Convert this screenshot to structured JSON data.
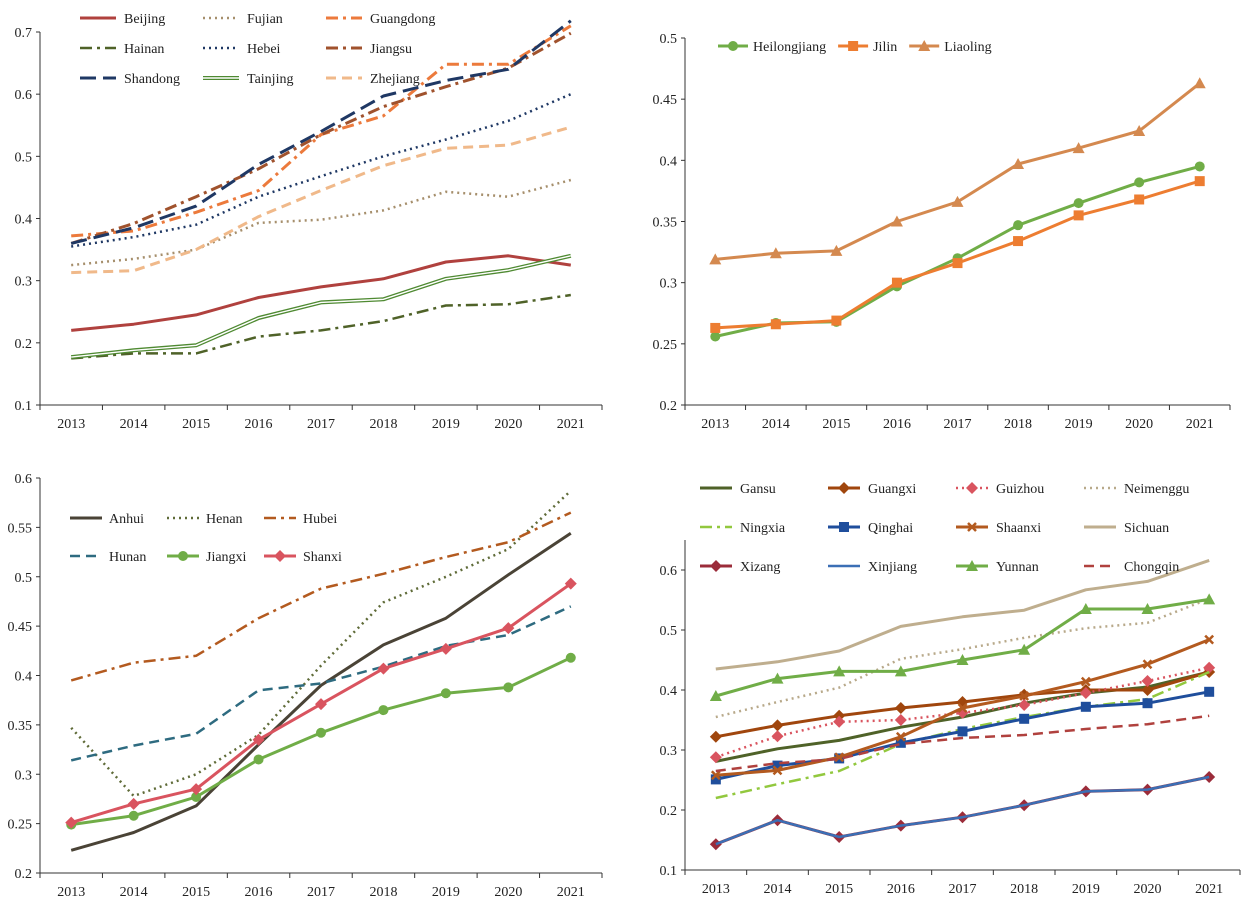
{
  "chart_data": [
    {
      "type": "line",
      "x": [
        "2013",
        "2014",
        "2015",
        "2016",
        "2017",
        "2018",
        "2019",
        "2020",
        "2021"
      ],
      "ylim": [
        0.1,
        0.7
      ],
      "yticks": [
        "0.1",
        "0.2",
        "0.3",
        "0.4",
        "0.5",
        "0.6",
        "0.7"
      ],
      "legend_placement": "top",
      "series": [
        {
          "name": "Beijing",
          "color": "#b0413e",
          "dash": "solid",
          "width": 3,
          "marker": "none",
          "values": [
            0.22,
            0.23,
            0.245,
            0.273,
            0.29,
            0.303,
            0.33,
            0.34,
            0.325
          ]
        },
        {
          "name": "Fujian",
          "color": "#a68f6c",
          "dash": "dot",
          "width": 2.5,
          "marker": "none",
          "values": [
            0.325,
            0.335,
            0.35,
            0.393,
            0.398,
            0.413,
            0.443,
            0.435,
            0.462
          ]
        },
        {
          "name": "Guangdong",
          "color": "#ec7a3c",
          "dash": "dashdot",
          "width": 3,
          "marker": "none",
          "values": [
            0.372,
            0.38,
            0.41,
            0.445,
            0.535,
            0.565,
            0.648,
            0.648,
            0.71
          ]
        },
        {
          "name": "Hainan",
          "color": "#4f6228",
          "dash": "dashdot",
          "width": 2.5,
          "marker": "none",
          "values": [
            0.175,
            0.183,
            0.183,
            0.21,
            0.22,
            0.235,
            0.26,
            0.262,
            0.277
          ]
        },
        {
          "name": "Hebei",
          "color": "#1f3864",
          "dash": "dot",
          "width": 2.5,
          "marker": "none",
          "values": [
            0.355,
            0.37,
            0.39,
            0.435,
            0.468,
            0.5,
            0.527,
            0.557,
            0.6
          ]
        },
        {
          "name": "Jiangsu",
          "color": "#a0522d",
          "dash": "dashdot",
          "width": 3,
          "marker": "none",
          "values": [
            0.36,
            0.392,
            0.435,
            0.48,
            0.535,
            0.58,
            0.612,
            0.642,
            0.698
          ]
        },
        {
          "name": "Shandong",
          "color": "#1f3864",
          "dash": "longdash",
          "width": 3,
          "marker": "none",
          "values": [
            0.36,
            0.385,
            0.42,
            0.487,
            0.54,
            0.597,
            0.622,
            0.64,
            0.718
          ]
        },
        {
          "name": "Tainjing",
          "color": "#4f8a32",
          "dash": "double",
          "width": 4,
          "marker": "none",
          "values": [
            0.177,
            0.188,
            0.196,
            0.24,
            0.265,
            0.27,
            0.303,
            0.317,
            0.34
          ]
        },
        {
          "name": "Zhejiang",
          "color": "#f0b98a",
          "dash": "dash",
          "width": 3,
          "marker": "none",
          "values": [
            0.313,
            0.316,
            0.35,
            0.403,
            0.445,
            0.485,
            0.513,
            0.518,
            0.547
          ]
        }
      ]
    },
    {
      "type": "line",
      "x": [
        "2013",
        "2014",
        "2015",
        "2016",
        "2017",
        "2018",
        "2019",
        "2020",
        "2021"
      ],
      "ylim": [
        0.2,
        0.5
      ],
      "yticks": [
        "0.2",
        "0.25",
        "0.3",
        "0.35",
        "0.4",
        "0.45",
        "0.5"
      ],
      "legend_placement": "top",
      "series": [
        {
          "name": "Heilongjiang",
          "color": "#70ad47",
          "dash": "solid",
          "width": 3,
          "marker": "circle",
          "values": [
            0.256,
            0.267,
            0.268,
            0.297,
            0.32,
            0.347,
            0.365,
            0.382,
            0.395
          ]
        },
        {
          "name": "Jilin",
          "color": "#ed7d31",
          "dash": "solid",
          "width": 3,
          "marker": "square",
          "values": [
            0.263,
            0.266,
            0.269,
            0.3,
            0.316,
            0.334,
            0.355,
            0.368,
            0.383
          ]
        },
        {
          "name": "Liaoling",
          "color": "#d4894f",
          "dash": "solid",
          "width": 3,
          "marker": "triangle",
          "values": [
            0.319,
            0.324,
            0.326,
            0.35,
            0.366,
            0.397,
            0.41,
            0.424,
            0.463
          ]
        }
      ]
    },
    {
      "type": "line",
      "x": [
        "2013",
        "2014",
        "2015",
        "2016",
        "2017",
        "2018",
        "2019",
        "2020",
        "2021"
      ],
      "ylim": [
        0.2,
        0.6
      ],
      "yticks": [
        "0.2",
        "0.25",
        "0.3",
        "0.35",
        "0.4",
        "0.45",
        "0.5",
        "0.55",
        "0.6"
      ],
      "legend_placement": "top-left",
      "series": [
        {
          "name": "Anhui",
          "color": "#4a4336",
          "dash": "solid",
          "width": 3,
          "marker": "none",
          "values": [
            0.223,
            0.241,
            0.268,
            0.33,
            0.39,
            0.431,
            0.458,
            0.502,
            0.544
          ]
        },
        {
          "name": "Henan",
          "color": "#5f6b38",
          "dash": "dot",
          "width": 2.5,
          "marker": "none",
          "values": [
            0.347,
            0.278,
            0.3,
            0.34,
            0.41,
            0.474,
            0.5,
            0.528,
            0.587
          ]
        },
        {
          "name": "Hubei",
          "color": "#b35a1f",
          "dash": "dashdot",
          "width": 2.5,
          "marker": "none",
          "values": [
            0.395,
            0.413,
            0.42,
            0.458,
            0.488,
            0.503,
            0.52,
            0.535,
            0.565
          ]
        },
        {
          "name": "Hunan",
          "color": "#2e6b80",
          "dash": "dash",
          "width": 2.5,
          "marker": "none",
          "values": [
            0.314,
            0.329,
            0.341,
            0.385,
            0.392,
            0.409,
            0.43,
            0.441,
            0.47
          ]
        },
        {
          "name": "Jiangxi",
          "color": "#70ad47",
          "dash": "solid",
          "width": 3,
          "marker": "circle",
          "values": [
            0.249,
            0.258,
            0.277,
            0.315,
            0.342,
            0.365,
            0.382,
            0.388,
            0.418
          ]
        },
        {
          "name": "Shanxi",
          "color": "#d9545f",
          "dash": "solid",
          "width": 3,
          "marker": "diamond",
          "values": [
            0.251,
            0.27,
            0.285,
            0.335,
            0.371,
            0.407,
            0.427,
            0.448,
            0.493
          ]
        }
      ]
    },
    {
      "type": "line",
      "x": [
        "2013",
        "2014",
        "2015",
        "2016",
        "2017",
        "2018",
        "2019",
        "2020",
        "2021"
      ],
      "ylim": [
        0.1,
        0.65
      ],
      "yticks": [
        "0.1",
        "0.2",
        "0.3",
        "0.4",
        "0.5",
        "0.6"
      ],
      "legend_placement": "top",
      "series": [
        {
          "name": "Gansu",
          "color": "#4f6228",
          "dash": "solid",
          "width": 3,
          "marker": "none",
          "values": [
            0.281,
            0.302,
            0.316,
            0.338,
            0.355,
            0.378,
            0.395,
            0.405,
            0.43
          ]
        },
        {
          "name": "Guangxi",
          "color": "#a0460d",
          "dash": "solid",
          "width": 3,
          "marker": "diamond",
          "values": [
            0.322,
            0.341,
            0.357,
            0.37,
            0.38,
            0.392,
            0.4,
            0.4,
            0.43
          ]
        },
        {
          "name": "Guizhou",
          "color": "#d9545f",
          "dash": "dot",
          "width": 2.5,
          "marker": "diamond",
          "values": [
            0.288,
            0.323,
            0.347,
            0.35,
            0.362,
            0.375,
            0.395,
            0.415,
            0.437
          ]
        },
        {
          "name": "Neimenggu",
          "color": "#b8a98a",
          "dash": "dot",
          "width": 2.5,
          "marker": "none",
          "values": [
            0.355,
            0.38,
            0.404,
            0.452,
            0.468,
            0.487,
            0.503,
            0.512,
            0.552
          ]
        },
        {
          "name": "Ningxia",
          "color": "#92c83e",
          "dash": "dashdot",
          "width": 2.5,
          "marker": "none",
          "values": [
            0.22,
            0.243,
            0.265,
            0.31,
            0.335,
            0.355,
            0.372,
            0.385,
            0.43
          ]
        },
        {
          "name": "Qinghai",
          "color": "#1f4e9c",
          "dash": "solid",
          "width": 3,
          "marker": "square",
          "values": [
            0.251,
            0.274,
            0.286,
            0.312,
            0.331,
            0.352,
            0.372,
            0.378,
            0.397
          ]
        },
        {
          "name": "Shaanxi",
          "color": "#b35a1f",
          "dash": "solid",
          "width": 3,
          "marker": "x",
          "values": [
            0.258,
            0.266,
            0.288,
            0.322,
            0.37,
            0.39,
            0.414,
            0.443,
            0.484
          ]
        },
        {
          "name": "Sichuan",
          "color": "#bfae8e",
          "dash": "solid",
          "width": 3,
          "marker": "none",
          "values": [
            0.435,
            0.447,
            0.465,
            0.506,
            0.522,
            0.533,
            0.567,
            0.581,
            0.616
          ]
        },
        {
          "name": "Xizang",
          "color": "#9b2c3a",
          "dash": "solid",
          "width": 3,
          "marker": "diamond",
          "values": [
            0.143,
            0.183,
            0.155,
            0.174,
            0.188,
            0.208,
            0.231,
            0.234,
            0.255
          ]
        },
        {
          "name": "Xinjiang",
          "color": "#3b6fb5",
          "dash": "solid",
          "width": 2.5,
          "marker": "none",
          "values": [
            0.143,
            0.183,
            0.155,
            0.174,
            0.188,
            0.208,
            0.231,
            0.234,
            0.255
          ]
        },
        {
          "name": "Yunnan",
          "color": "#70ad47",
          "dash": "solid",
          "width": 3,
          "marker": "triangle",
          "values": [
            0.39,
            0.419,
            0.431,
            0.431,
            0.45,
            0.467,
            0.535,
            0.535,
            0.551
          ]
        },
        {
          "name": "Chongqin",
          "color": "#b0413e",
          "dash": "dash",
          "width": 2.5,
          "marker": "none",
          "values": [
            0.265,
            0.278,
            0.285,
            0.31,
            0.32,
            0.325,
            0.335,
            0.343,
            0.357
          ]
        }
      ]
    }
  ]
}
